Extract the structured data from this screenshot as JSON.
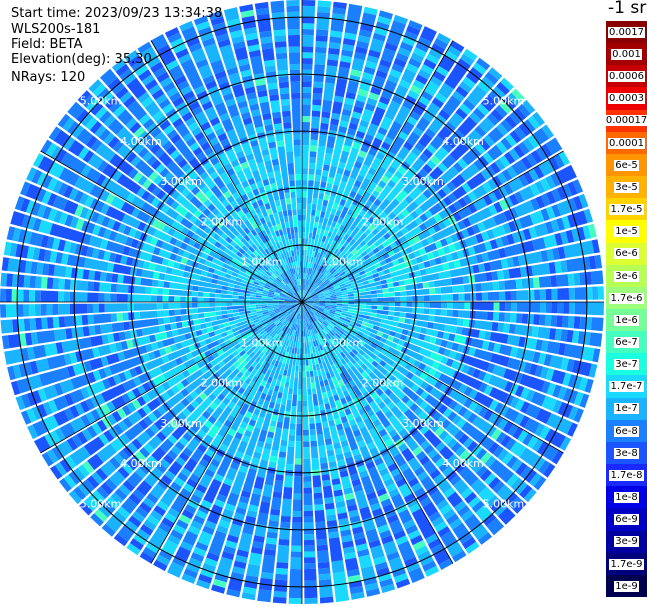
{
  "info": {
    "start_time": "Start time: 2023/09/23 13:34:38",
    "instrument": "WLS200s-181",
    "field": "Field: BETA",
    "elevation": "Elevation(deg): 35.30",
    "nrays": "NRays: 120"
  },
  "colorbar": {
    "units": "-1 sr",
    "levels": [
      {
        "label": "0.0017",
        "color": "#8b0000"
      },
      {
        "label": "0.001",
        "color": "#a40000"
      },
      {
        "label": "0.0006",
        "color": "#c40000"
      },
      {
        "label": "0.0003",
        "color": "#ee0000"
      },
      {
        "label": "0.00017",
        "color": "#ff3300"
      },
      {
        "label": "0.0001",
        "color": "#ff6a00"
      },
      {
        "label": "6e-5",
        "color": "#ff9500"
      },
      {
        "label": "3e-5",
        "color": "#ffb300"
      },
      {
        "label": "1.7e-5",
        "color": "#ffd200"
      },
      {
        "label": "1e-5",
        "color": "#ffff00"
      },
      {
        "label": "6e-6",
        "color": "#dcff33"
      },
      {
        "label": "3e-6",
        "color": "#b7ff55"
      },
      {
        "label": "1.7e-6",
        "color": "#9dff7a"
      },
      {
        "label": "1e-6",
        "color": "#75ff99"
      },
      {
        "label": "6e-7",
        "color": "#45ffc0"
      },
      {
        "label": "3e-7",
        "color": "#1affe0"
      },
      {
        "label": "1.7e-7",
        "color": "#1ad9ff"
      },
      {
        "label": "1e-7",
        "color": "#1ab3ff"
      },
      {
        "label": "6e-8",
        "color": "#1a80ff"
      },
      {
        "label": "3e-8",
        "color": "#1a55ff"
      },
      {
        "label": "1.7e-8",
        "color": "#1a2aff"
      },
      {
        "label": "1e-8",
        "color": "#0000e6"
      },
      {
        "label": "6e-9",
        "color": "#0000c4"
      },
      {
        "label": "3e-9",
        "color": "#0000a0"
      },
      {
        "label": "1.7e-9",
        "color": "#00007a"
      },
      {
        "label": "1e-9",
        "color": "#00004e"
      }
    ]
  },
  "ppi": {
    "max_range_km": 5.3,
    "ring_ranges_km": [
      1,
      2,
      3,
      4,
      5
    ],
    "range_labels": [
      "1.00km",
      "2.00km",
      "3.00km",
      "4.00km",
      "5.00km"
    ],
    "spoke_count": 12,
    "nrays": 120
  }
}
